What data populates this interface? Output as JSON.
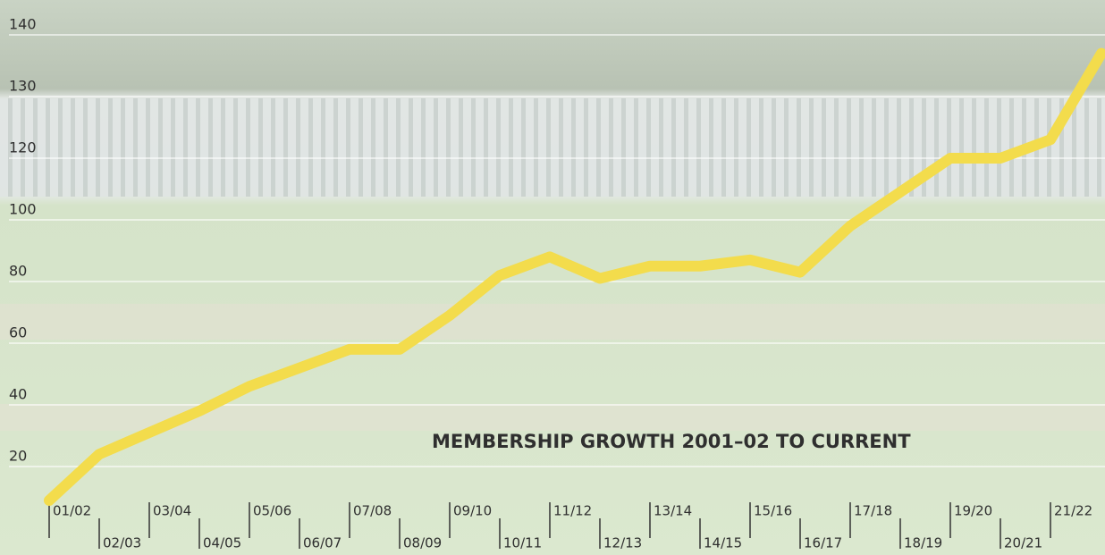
{
  "chart_data": {
    "type": "line",
    "title": "MEMBERSHIP GROWTH 2001–02 TO CURRENT",
    "categories": [
      "01/02",
      "02/03",
      "03/04",
      "04/05",
      "05/06",
      "06/07",
      "07/08",
      "08/09",
      "09/10",
      "10/11",
      "11/12",
      "12/13",
      "13/14",
      "14/15",
      "15/16",
      "16/17",
      "17/18",
      "18/19",
      "19/20",
      "20/21",
      "21/22",
      null
    ],
    "values": [
      9,
      24,
      31,
      38,
      46,
      52,
      58,
      58,
      69,
      82,
      88,
      81,
      85,
      85,
      87,
      83,
      98,
      109,
      120,
      120,
      123,
      137
    ],
    "color": "#f3dc4c",
    "ylim": [
      0,
      144
    ],
    "yticks": [
      20,
      40,
      60,
      80,
      100,
      120,
      130,
      140
    ],
    "grid": true
  }
}
